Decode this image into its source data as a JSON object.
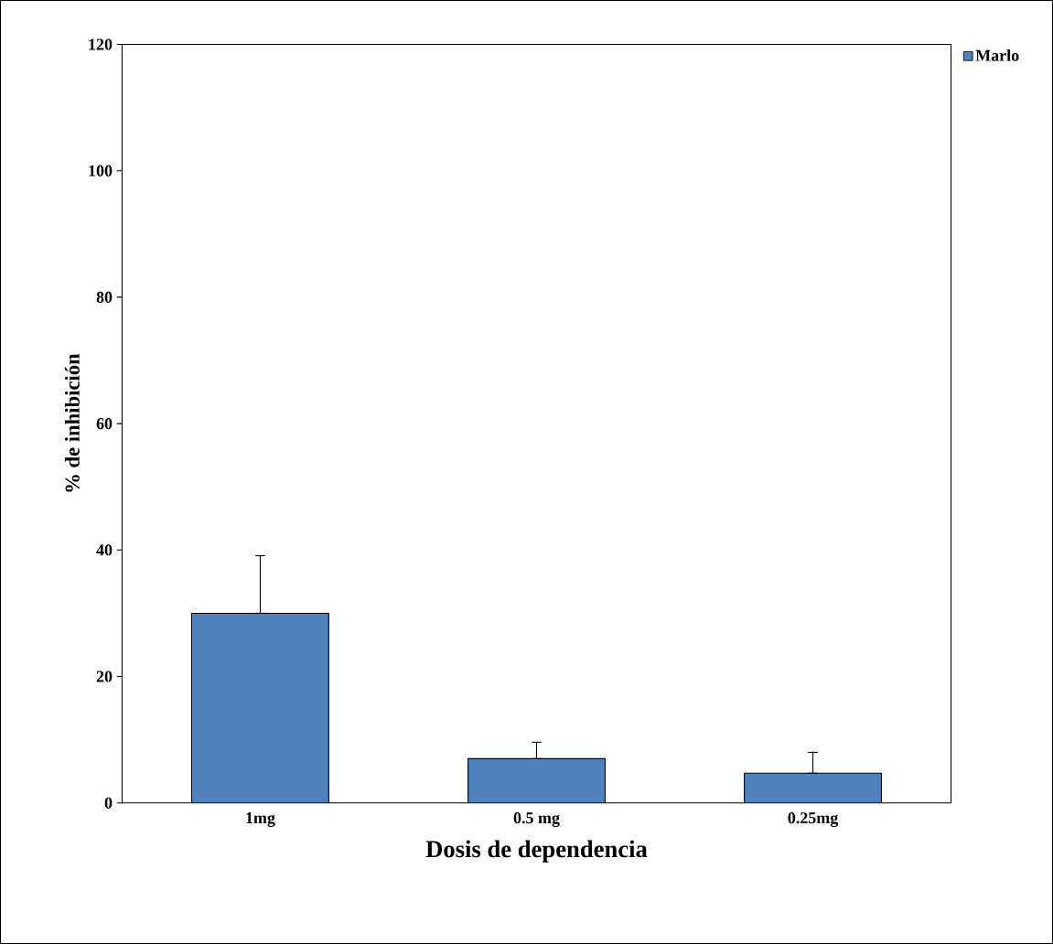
{
  "chart_data": {
    "type": "bar",
    "xlabel": "Dosis de dependencia",
    "ylabel": "% de inhibición",
    "categories": [
      "1mg",
      "0.5 mg",
      "0.25mg"
    ],
    "series": [
      {
        "name": "Marlo",
        "color": "#4f81bd",
        "values": [
          30,
          7,
          4.7
        ],
        "errors": [
          [
            30,
            39.1
          ],
          [
            7,
            9.6
          ],
          [
            4.7,
            8.0
          ]
        ]
      }
    ],
    "ylim": [
      0,
      120
    ],
    "yticks": [
      0,
      20,
      40,
      60,
      80,
      100,
      120
    ],
    "legend": "top right",
    "grid": false
  }
}
